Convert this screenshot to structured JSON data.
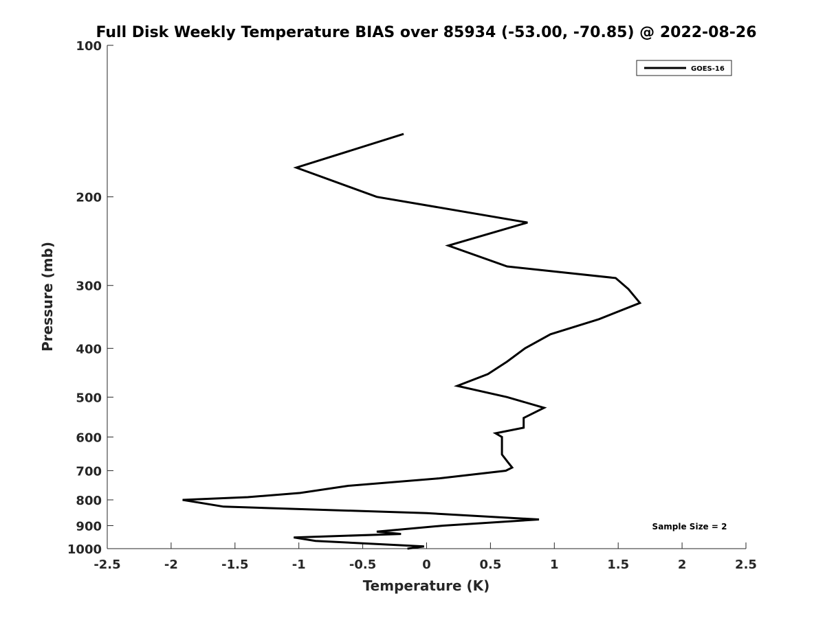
{
  "chart_data": {
    "type": "line",
    "title": "Full Disk Weekly Temperature BIAS over 85934 (-53.00, -70.85) @ 2022-08-26",
    "xlabel": "Temperature (K)",
    "ylabel": "Pressure (mb)",
    "xlim": [
      -2.5,
      2.5
    ],
    "ylim": [
      1000,
      100
    ],
    "y_scale": "log",
    "y_reversed": true,
    "grid": false,
    "legend_position": "top-right",
    "x_ticks": [
      "-2.5",
      "-2",
      "-1.5",
      "-1",
      "-0.5",
      "0",
      "0.5",
      "1",
      "1.5",
      "2",
      "2.5"
    ],
    "x_tick_values": [
      -2.5,
      -2,
      -1.5,
      -1,
      -0.5,
      0,
      0.5,
      1,
      1.5,
      2,
      2.5
    ],
    "y_ticks": [
      "100",
      "200",
      "300",
      "400",
      "500",
      "600",
      "700",
      "800",
      "900",
      "1000"
    ],
    "y_tick_values": [
      100,
      200,
      300,
      400,
      500,
      600,
      700,
      800,
      900,
      1000
    ],
    "annotation": "Sample Size = 2",
    "series": [
      {
        "name": "GOES-16",
        "color": "#000000",
        "x": [
          -0.18,
          -1.02,
          -0.39,
          0.79,
          0.17,
          0.63,
          1.48,
          1.58,
          1.67,
          1.35,
          0.97,
          0.77,
          0.63,
          0.48,
          0.24,
          0.63,
          0.92,
          0.76,
          0.76,
          0.54,
          0.59,
          0.59,
          0.59,
          0.64,
          0.67,
          0.62,
          0.1,
          -0.61,
          -0.99,
          -1.4,
          -1.91,
          -1.59,
          0.0,
          0.88,
          0.13,
          -0.39,
          -0.2,
          -1.04,
          -0.87,
          -0.02,
          -0.15
        ],
        "y": [
          150,
          175,
          200,
          225,
          250,
          275,
          290,
          305,
          325,
          350,
          375,
          400,
          425,
          450,
          475,
          500,
          525,
          550,
          575,
          590,
          600,
          620,
          650,
          675,
          690,
          700,
          725,
          750,
          775,
          790,
          800,
          825,
          850,
          875,
          900,
          925,
          935,
          950,
          965,
          990,
          1000
        ]
      }
    ]
  }
}
